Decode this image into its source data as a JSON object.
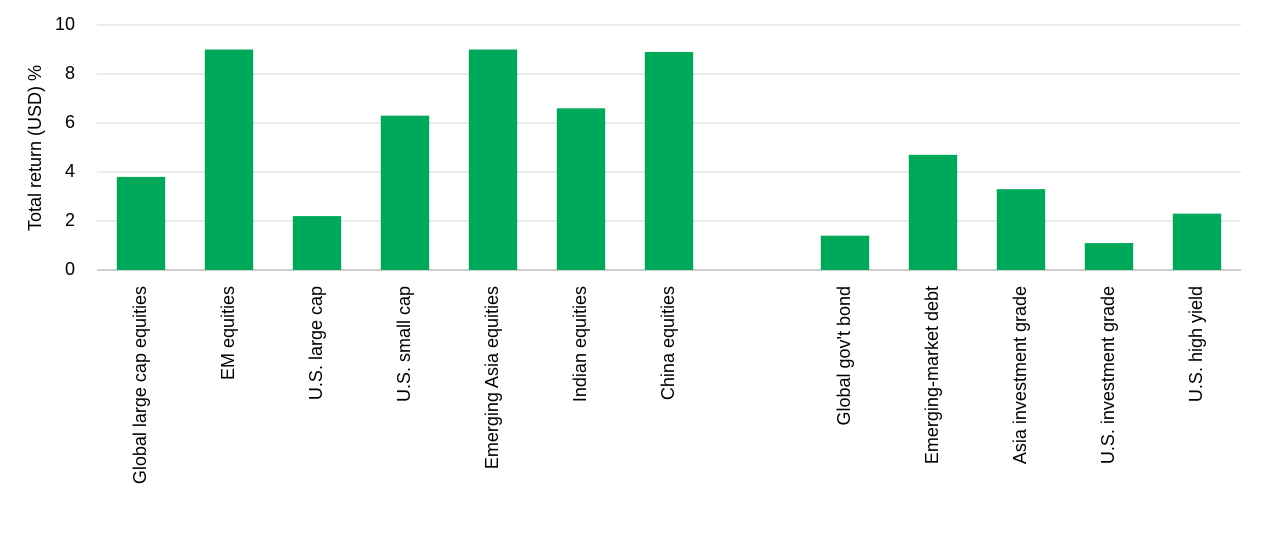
{
  "chart_data": {
    "type": "bar",
    "y_label": "Total return (USD) %",
    "categories": [
      "Global large cap equities",
      "EM equities",
      "U.S. large cap",
      "U.S. small cap",
      "Emerging Asia equities",
      "Indian equities",
      "China equities",
      null,
      "Global gov't bond",
      "Emerging-market debt",
      "Asia investment grade",
      "U.S. investment grade",
      "U.S. high yield"
    ],
    "values": [
      3.8,
      9.0,
      2.2,
      6.3,
      9.0,
      6.6,
      8.9,
      null,
      1.4,
      4.7,
      3.3,
      1.1,
      2.3
    ],
    "color": "#00a85a",
    "ylim": [
      0,
      10
    ],
    "yticks": [
      0,
      2,
      4,
      6,
      8,
      10
    ],
    "grid": true
  }
}
